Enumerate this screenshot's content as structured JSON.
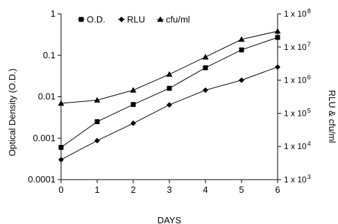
{
  "chart_data": {
    "type": "line",
    "title": "",
    "xlabel": "DAYS",
    "ylabel_left": "Optical Density (O.D.)",
    "ylabel_right": "RLU & cfu/ml",
    "x": [
      0,
      1,
      2,
      3,
      4,
      5,
      6
    ],
    "xlim": [
      0,
      6
    ],
    "x_ticks": [
      "0",
      "1",
      "2",
      "3",
      "4",
      "5",
      "6"
    ],
    "ylim_left": [
      0.0001,
      1
    ],
    "y_scale_left": "log",
    "y_ticks_left": [
      "0.0001",
      "0.001",
      "0.01",
      "0.1",
      "1"
    ],
    "ylim_right": [
      1000,
      100000000
    ],
    "y_scale_right": "log",
    "y_ticks_right": [
      {
        "base": "1 x 10",
        "exp": "3"
      },
      {
        "base": "1 x 10",
        "exp": "4"
      },
      {
        "base": "1 x 10",
        "exp": "5"
      },
      {
        "base": "1 x 10",
        "exp": "6"
      },
      {
        "base": "1 x 10",
        "exp": "7"
      },
      {
        "base": "1 x 10",
        "exp": "8"
      }
    ],
    "grid": false,
    "legend_position": "top-left",
    "series": [
      {
        "name": "O.D.",
        "axis": "left",
        "marker": "square",
        "values": [
          0.0006,
          0.0025,
          0.0065,
          0.016,
          0.05,
          0.135,
          0.27
        ]
      },
      {
        "name": "RLU",
        "axis": "right",
        "marker": "diamond",
        "values": [
          4000,
          15000,
          50000,
          180000,
          500000,
          1000000,
          2500000
        ]
      },
      {
        "name": "cfu/ml",
        "axis": "right",
        "marker": "triangle",
        "values": [
          200000,
          250000,
          500000,
          1500000,
          5000000,
          17000000,
          30000000
        ]
      }
    ],
    "colors": {
      "line": "#000000",
      "marker": "#000000"
    }
  }
}
